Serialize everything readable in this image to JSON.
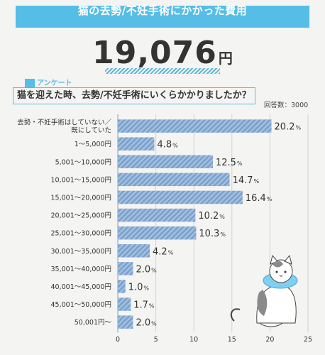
{
  "header": {
    "title": "猫の去勢/不妊手術にかかった費用",
    "amount": "19,076",
    "amount_unit": "円"
  },
  "question": {
    "tag": "アンケート",
    "text": "猫を迎えた時、去勢/不妊手術にいくらかかりましたか？",
    "respondents": "回答数：3000"
  },
  "colors": {
    "accent": "#55bde6",
    "bar": "#7ca3cd",
    "bar_stripe": "#a9c3e2"
  },
  "chart_data": {
    "type": "bar",
    "orientation": "horizontal",
    "categories": [
      [
        "去勢・不妊手術はしていない／",
        "既にしていた"
      ],
      [
        "1〜5,000円"
      ],
      [
        "5,001〜10,000円"
      ],
      [
        "10,001〜15,000円"
      ],
      [
        "15,001〜20,000円"
      ],
      [
        "20,001〜25,000円"
      ],
      [
        "25,001〜30,000円"
      ],
      [
        "30,001〜35,000円"
      ],
      [
        "35,001〜40,000円"
      ],
      [
        "40,001〜45,000円"
      ],
      [
        "45,001〜50,000円"
      ],
      [
        "50,001円〜"
      ]
    ],
    "values": [
      20.2,
      4.8,
      12.5,
      14.7,
      16.4,
      10.2,
      10.3,
      4.2,
      2.0,
      1.0,
      1.7,
      2.0
    ],
    "value_labels": [
      "20.2",
      "4.8",
      "12.5",
      "14.7",
      "16.4",
      "10.2",
      "10.3",
      "4.2",
      "2.0",
      "1.0",
      "1.7",
      "2.0"
    ],
    "value_suffix": "%",
    "xlim": [
      0,
      25
    ],
    "xticks": [
      "0",
      "5",
      "10",
      "15",
      "20",
      "25"
    ],
    "grid": true
  }
}
